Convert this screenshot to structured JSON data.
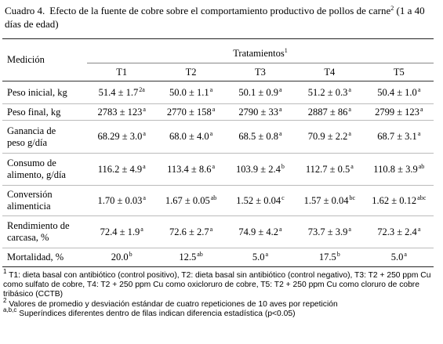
{
  "caption": {
    "label": "Cuadro 4.",
    "text": "Efecto de la fuente de cobre sobre el comportamiento productivo de pollos de carne",
    "sup": "2",
    "after": "(1 a 40 días de edad)"
  },
  "header": {
    "measure": "Medición",
    "group": "Tratamientos",
    "group_sup": "1",
    "columns": [
      "T1",
      "T2",
      "T3",
      "T4",
      "T5"
    ]
  },
  "rows": [
    {
      "label": [
        "Peso inicial, kg"
      ],
      "cells": [
        {
          "text": "51.4 ± 1.7",
          "sup": "2a"
        },
        {
          "text": "50.0 ± 1.1",
          "sup": "a"
        },
        {
          "text": "50.1 ± 0.9",
          "sup": "a"
        },
        {
          "text": "51.2 ± 0.3",
          "sup": "a"
        },
        {
          "text": "50.4 ± 1.0",
          "sup": "a"
        }
      ]
    },
    {
      "label": [
        "Peso final, kg"
      ],
      "cells": [
        {
          "text": "2783 ± 123",
          "sup": "a"
        },
        {
          "text": "2770 ± 158",
          "sup": "a"
        },
        {
          "text": "2790 ± 33",
          "sup": "a"
        },
        {
          "text": "2887 ± 86",
          "sup": "a"
        },
        {
          "text": "2799 ± 123",
          "sup": "a"
        }
      ]
    },
    {
      "label": [
        "Ganancia de",
        "peso g/día"
      ],
      "cells": [
        {
          "text": "68.29 ± 3.0",
          "sup": "a"
        },
        {
          "text": "68.0 ± 4.0",
          "sup": "a"
        },
        {
          "text": "68.5 ± 0.8",
          "sup": "a"
        },
        {
          "text": "70.9 ± 2.2",
          "sup": "a"
        },
        {
          "text": "68.7 ± 3.1",
          "sup": "a"
        }
      ]
    },
    {
      "label": [
        "Consumo de",
        "alimento, g/día"
      ],
      "cells": [
        {
          "text": "116.2 ± 4.9",
          "sup": "a"
        },
        {
          "text": "113.4 ± 8.6",
          "sup": "a"
        },
        {
          "text": "103.9 ± 2.4",
          "sup": "b"
        },
        {
          "text": "112.7 ± 0.5",
          "sup": "a"
        },
        {
          "text": "110.8 ± 3.9",
          "sup": "ab"
        }
      ]
    },
    {
      "label": [
        "Conversión",
        "alimenticia"
      ],
      "cells": [
        {
          "text": "1.70 ± 0.03",
          "sup": "a"
        },
        {
          "text": "1.67 ± 0.05",
          "sup": "ab"
        },
        {
          "text": "1.52 ± 0.04",
          "sup": "c"
        },
        {
          "text": "1.57 ± 0.04",
          "sup": "bc"
        },
        {
          "text": "1.62 ± 0.12",
          "sup": "abc"
        }
      ]
    },
    {
      "label": [
        "Rendimiento de",
        "carcasa, %"
      ],
      "cells": [
        {
          "text": "72.4 ± 1.9",
          "sup": "a"
        },
        {
          "text": "72.6 ± 2.7",
          "sup": "a"
        },
        {
          "text": "74.9 ± 4.2",
          "sup": "a"
        },
        {
          "text": "73.7 ± 3.9",
          "sup": "a"
        },
        {
          "text": "72.3 ± 2.4",
          "sup": "a"
        }
      ]
    },
    {
      "label": [
        "Mortalidad, %"
      ],
      "cells": [
        {
          "text": "20.0",
          "sup": "b"
        },
        {
          "text": "12.5",
          "sup": "ab"
        },
        {
          "text": "5.0",
          "sup": "a"
        },
        {
          "text": "17.5",
          "sup": "b"
        },
        {
          "text": "5.0",
          "sup": "a"
        }
      ]
    }
  ],
  "footnotes": [
    {
      "sup": "1",
      "text": "T1: dieta basal con antibiótico (control positivo), T2: dieta basal sin antibiótico (control negativo), T3: T2 + 250 ppm Cu como sulfato de cobre, T4: T2 + 250 ppm Cu como oxicloruro de cobre, T5: T2 + 250 ppm Cu como cloruro de cobre tribásico (CCTB)"
    },
    {
      "sup": "2",
      "text": "Valores de promedio y desviación estándar de cuatro repeticiones de 10 aves por repetición"
    },
    {
      "sup": "a,b,c",
      "text": "Superíndices diferentes dentro de filas indican diferencia estadística (p<0.05)"
    }
  ]
}
